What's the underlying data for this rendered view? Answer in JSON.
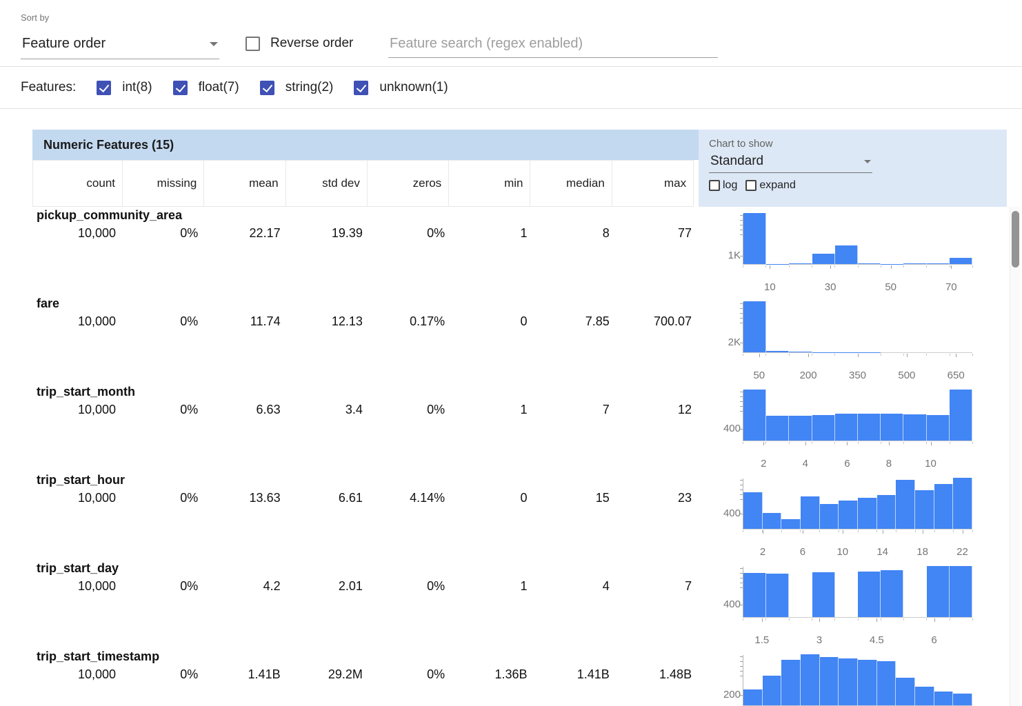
{
  "toolbar": {
    "sort_by_label": "Sort by",
    "sort_by_value": "Feature order",
    "reverse_order_label": "Reverse order",
    "reverse_order_checked": false,
    "search_placeholder": "Feature search (regex enabled)"
  },
  "features_bar": {
    "label": "Features:",
    "checkboxes": [
      {
        "label": "int(8)",
        "checked": true
      },
      {
        "label": "float(7)",
        "checked": true
      },
      {
        "label": "string(2)",
        "checked": true
      },
      {
        "label": "unknown(1)",
        "checked": true
      }
    ]
  },
  "table": {
    "title": "Numeric Features (15)",
    "columns": [
      "count",
      "missing",
      "mean",
      "std dev",
      "zeros",
      "min",
      "median",
      "max"
    ],
    "chart_controls": {
      "label": "Chart to show",
      "selected": "Standard",
      "log_label": "log",
      "log_checked": false,
      "expand_label": "expand",
      "expand_checked": false
    },
    "rows": [
      {
        "name": "pickup_community_area",
        "count": "10,000",
        "missing": "0%",
        "mean": "22.17",
        "std_dev": "19.39",
        "zeros": "0%",
        "min": "1",
        "median": "8",
        "max": "77"
      },
      {
        "name": "fare",
        "count": "10,000",
        "missing": "0%",
        "mean": "11.74",
        "std_dev": "12.13",
        "zeros": "0.17%",
        "min": "0",
        "median": "7.85",
        "max": "700.07"
      },
      {
        "name": "trip_start_month",
        "count": "10,000",
        "missing": "0%",
        "mean": "6.63",
        "std_dev": "3.4",
        "zeros": "0%",
        "min": "1",
        "median": "7",
        "max": "12"
      },
      {
        "name": "trip_start_hour",
        "count": "10,000",
        "missing": "0%",
        "mean": "13.63",
        "std_dev": "6.61",
        "zeros": "4.14%",
        "min": "0",
        "median": "15",
        "max": "23"
      },
      {
        "name": "trip_start_day",
        "count": "10,000",
        "missing": "0%",
        "mean": "4.2",
        "std_dev": "2.01",
        "zeros": "0%",
        "min": "1",
        "median": "4",
        "max": "7"
      },
      {
        "name": "trip_start_timestamp",
        "count": "10,000",
        "missing": "0%",
        "mean": "1.41B",
        "std_dev": "29.2M",
        "zeros": "0%",
        "min": "1.36B",
        "median": "1.41B",
        "max": "1.48B"
      }
    ]
  },
  "colors": {
    "accent_indigo": "#3f51b5",
    "histogram_blue": "#4285f4",
    "header_blue": "#c3d9f0",
    "controls_blue": "#dde8f6"
  },
  "chart_data": [
    {
      "type": "bar",
      "feature": "pickup_community_area",
      "x_range": [
        1,
        77
      ],
      "x_ticks": [
        10,
        30,
        50,
        70
      ],
      "y_axis_label": "1K",
      "y_axis_value": 1000,
      "values": [
        5700,
        40,
        90,
        1150,
        2100,
        50,
        30,
        80,
        60,
        700
      ]
    },
    {
      "type": "bar",
      "feature": "fare",
      "x_range": [
        0,
        700
      ],
      "x_ticks": [
        50,
        200,
        350,
        500,
        650
      ],
      "y_axis_label": "2K",
      "y_axis_value": 2000,
      "values": [
        9550,
        280,
        90,
        40,
        20,
        10,
        5,
        3,
        1,
        1
      ]
    },
    {
      "type": "bar",
      "feature": "trip_start_month",
      "x_range": [
        1,
        12
      ],
      "x_ticks": [
        2,
        4,
        6,
        8,
        10
      ],
      "y_axis_label": "400",
      "y_axis_value": 400,
      "values": [
        1650,
        810,
        800,
        830,
        860,
        870,
        880,
        840,
        820,
        1640
      ]
    },
    {
      "type": "bar",
      "feature": "trip_start_hour",
      "x_range": [
        0,
        23
      ],
      "x_ticks": [
        2,
        6,
        10,
        14,
        18,
        22
      ],
      "y_axis_label": "400",
      "y_axis_value": 400,
      "values": [
        920,
        410,
        250,
        820,
        620,
        720,
        780,
        860,
        1230,
        980,
        1130,
        1290
      ]
    },
    {
      "type": "bar",
      "feature": "trip_start_day",
      "x_range": [
        1,
        7
      ],
      "x_ticks": [
        1.5,
        3,
        4.5,
        6
      ],
      "y_axis_label": "400",
      "y_axis_value": 400,
      "values": [
        1350,
        1320,
        0,
        1380,
        0,
        1400,
        1430,
        0,
        1560,
        1560
      ]
    },
    {
      "type": "bar",
      "feature": "trip_start_timestamp",
      "x_range": [
        1.36,
        1.48
      ],
      "x_ticks": [],
      "y_axis_label": "200",
      "y_axis_value": 200,
      "values": [
        300,
        550,
        850,
        950,
        900,
        870,
        850,
        820,
        520,
        350,
        260,
        220
      ]
    }
  ]
}
